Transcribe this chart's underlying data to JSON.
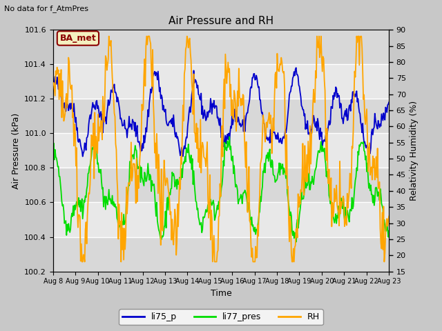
{
  "title": "Air Pressure and RH",
  "top_left_text": "No data for f_AtmPres",
  "annotation_box": "BA_met",
  "xlabel": "Time",
  "ylabel_left": "Air Pressure (kPa)",
  "ylabel_right": "Relativity Humidity (%)",
  "ylim_left": [
    100.2,
    101.6
  ],
  "ylim_right": [
    15,
    90
  ],
  "yticks_left": [
    100.2,
    100.4,
    100.6,
    100.8,
    101.0,
    101.2,
    101.4,
    101.6
  ],
  "yticks_right": [
    15,
    20,
    25,
    30,
    35,
    40,
    45,
    50,
    55,
    60,
    65,
    70,
    75,
    80,
    85,
    90
  ],
  "x_tick_labels": [
    "Aug 8",
    "Aug 9",
    "Aug 10",
    "Aug 11",
    "Aug 12",
    "Aug 13",
    "Aug 14",
    "Aug 15",
    "Aug 16",
    "Aug 17",
    "Aug 18",
    "Aug 19",
    "Aug 20",
    "Aug 21",
    "Aug 22",
    "Aug 23"
  ],
  "color_li75_p": "#0000cc",
  "color_li77_pres": "#00dd00",
  "color_RH": "#ffa500",
  "background_color": "#c8c8c8",
  "plot_bg_color": "#e8e8e8",
  "legend_labels": [
    "li75_p",
    "li77_pres",
    "RH"
  ],
  "grid_color": "white",
  "n_points": 500,
  "figsize": [
    6.4,
    4.8
  ],
  "dpi": 100
}
